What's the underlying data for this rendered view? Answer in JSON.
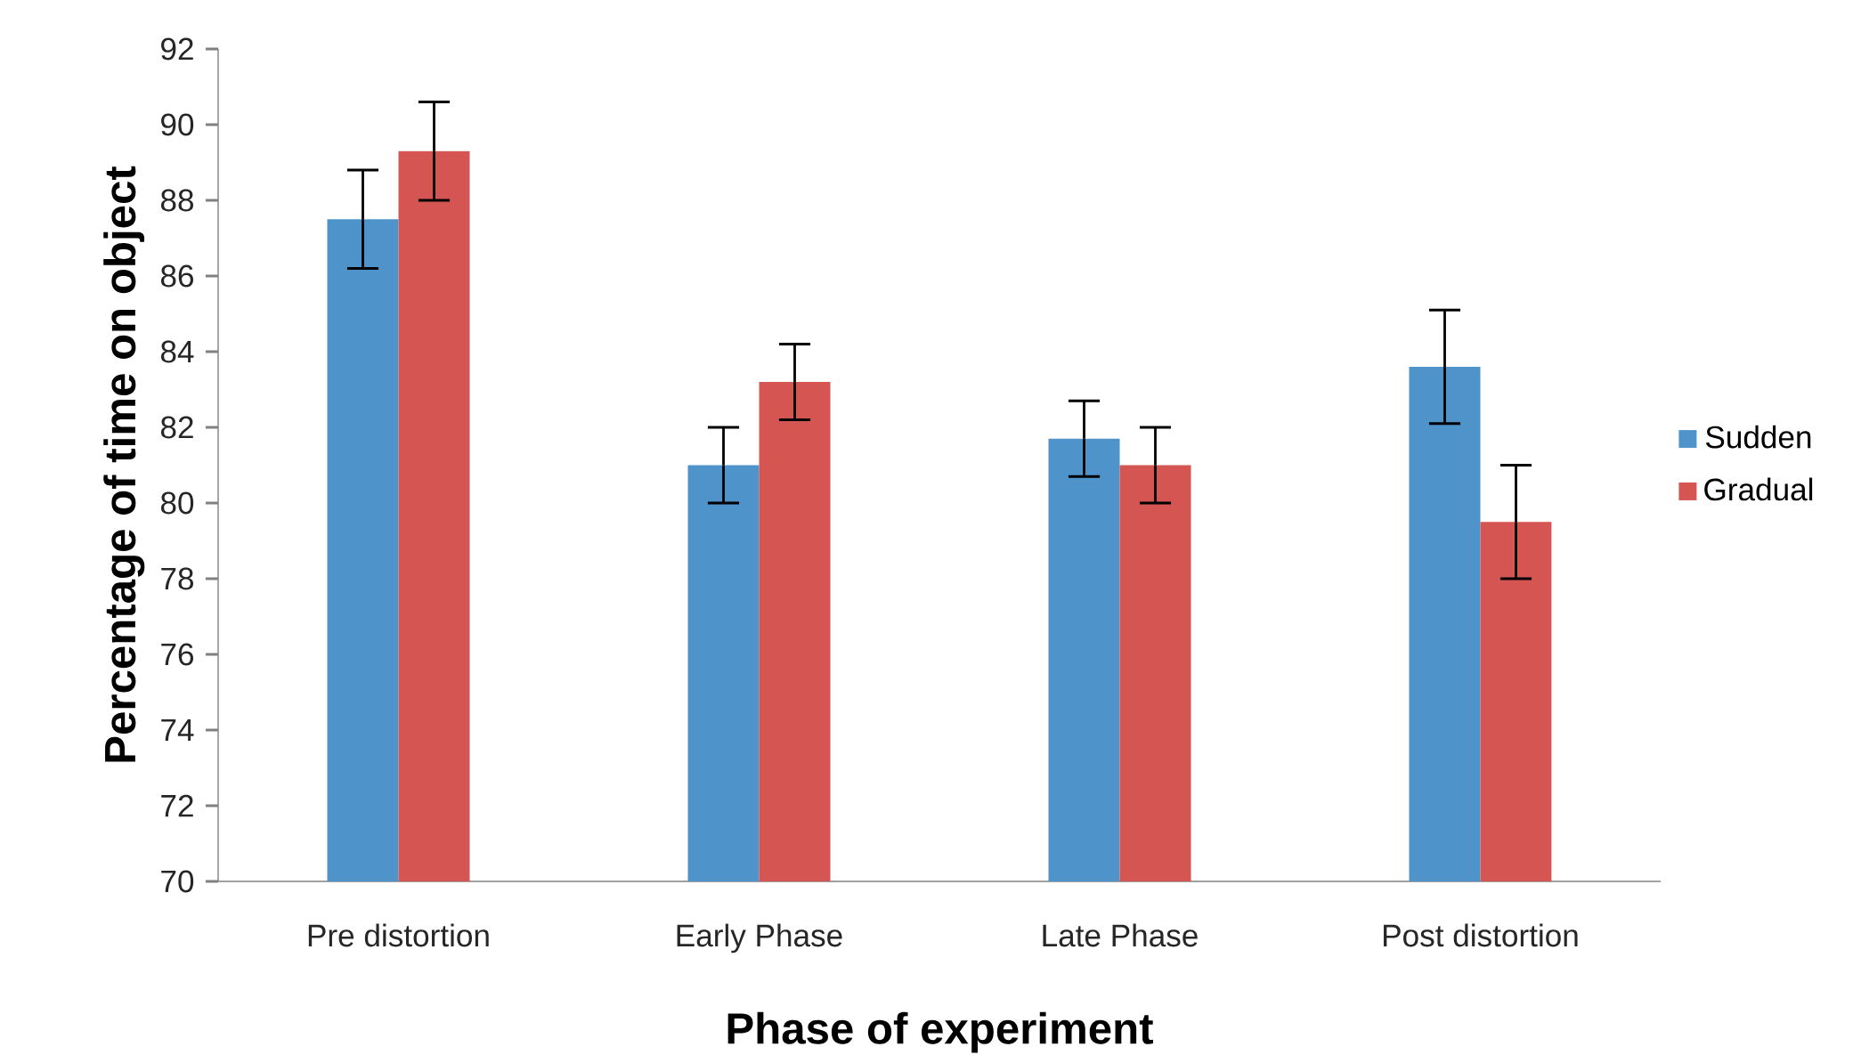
{
  "chart_data": {
    "type": "bar",
    "xlabel": "Phase of experiment",
    "ylabel": "Percentage of time on object",
    "categories": [
      "Pre distortion",
      "Early Phase",
      "Late Phase",
      "Post distortion"
    ],
    "series": [
      {
        "name": "Sudden",
        "color": "#4f93cb",
        "values": [
          87.5,
          81.0,
          81.7,
          83.6
        ],
        "errors": [
          1.3,
          1.0,
          1.0,
          1.5
        ]
      },
      {
        "name": "Gradual",
        "color": "#d55552",
        "values": [
          89.3,
          83.2,
          81.0,
          79.5
        ],
        "errors": [
          1.3,
          1.0,
          1.0,
          1.5
        ]
      }
    ],
    "ylim": [
      70,
      92
    ],
    "yticks": [
      70,
      72,
      74,
      76,
      78,
      80,
      82,
      84,
      86,
      88,
      90,
      92
    ],
    "grid": false,
    "legend": "right"
  }
}
